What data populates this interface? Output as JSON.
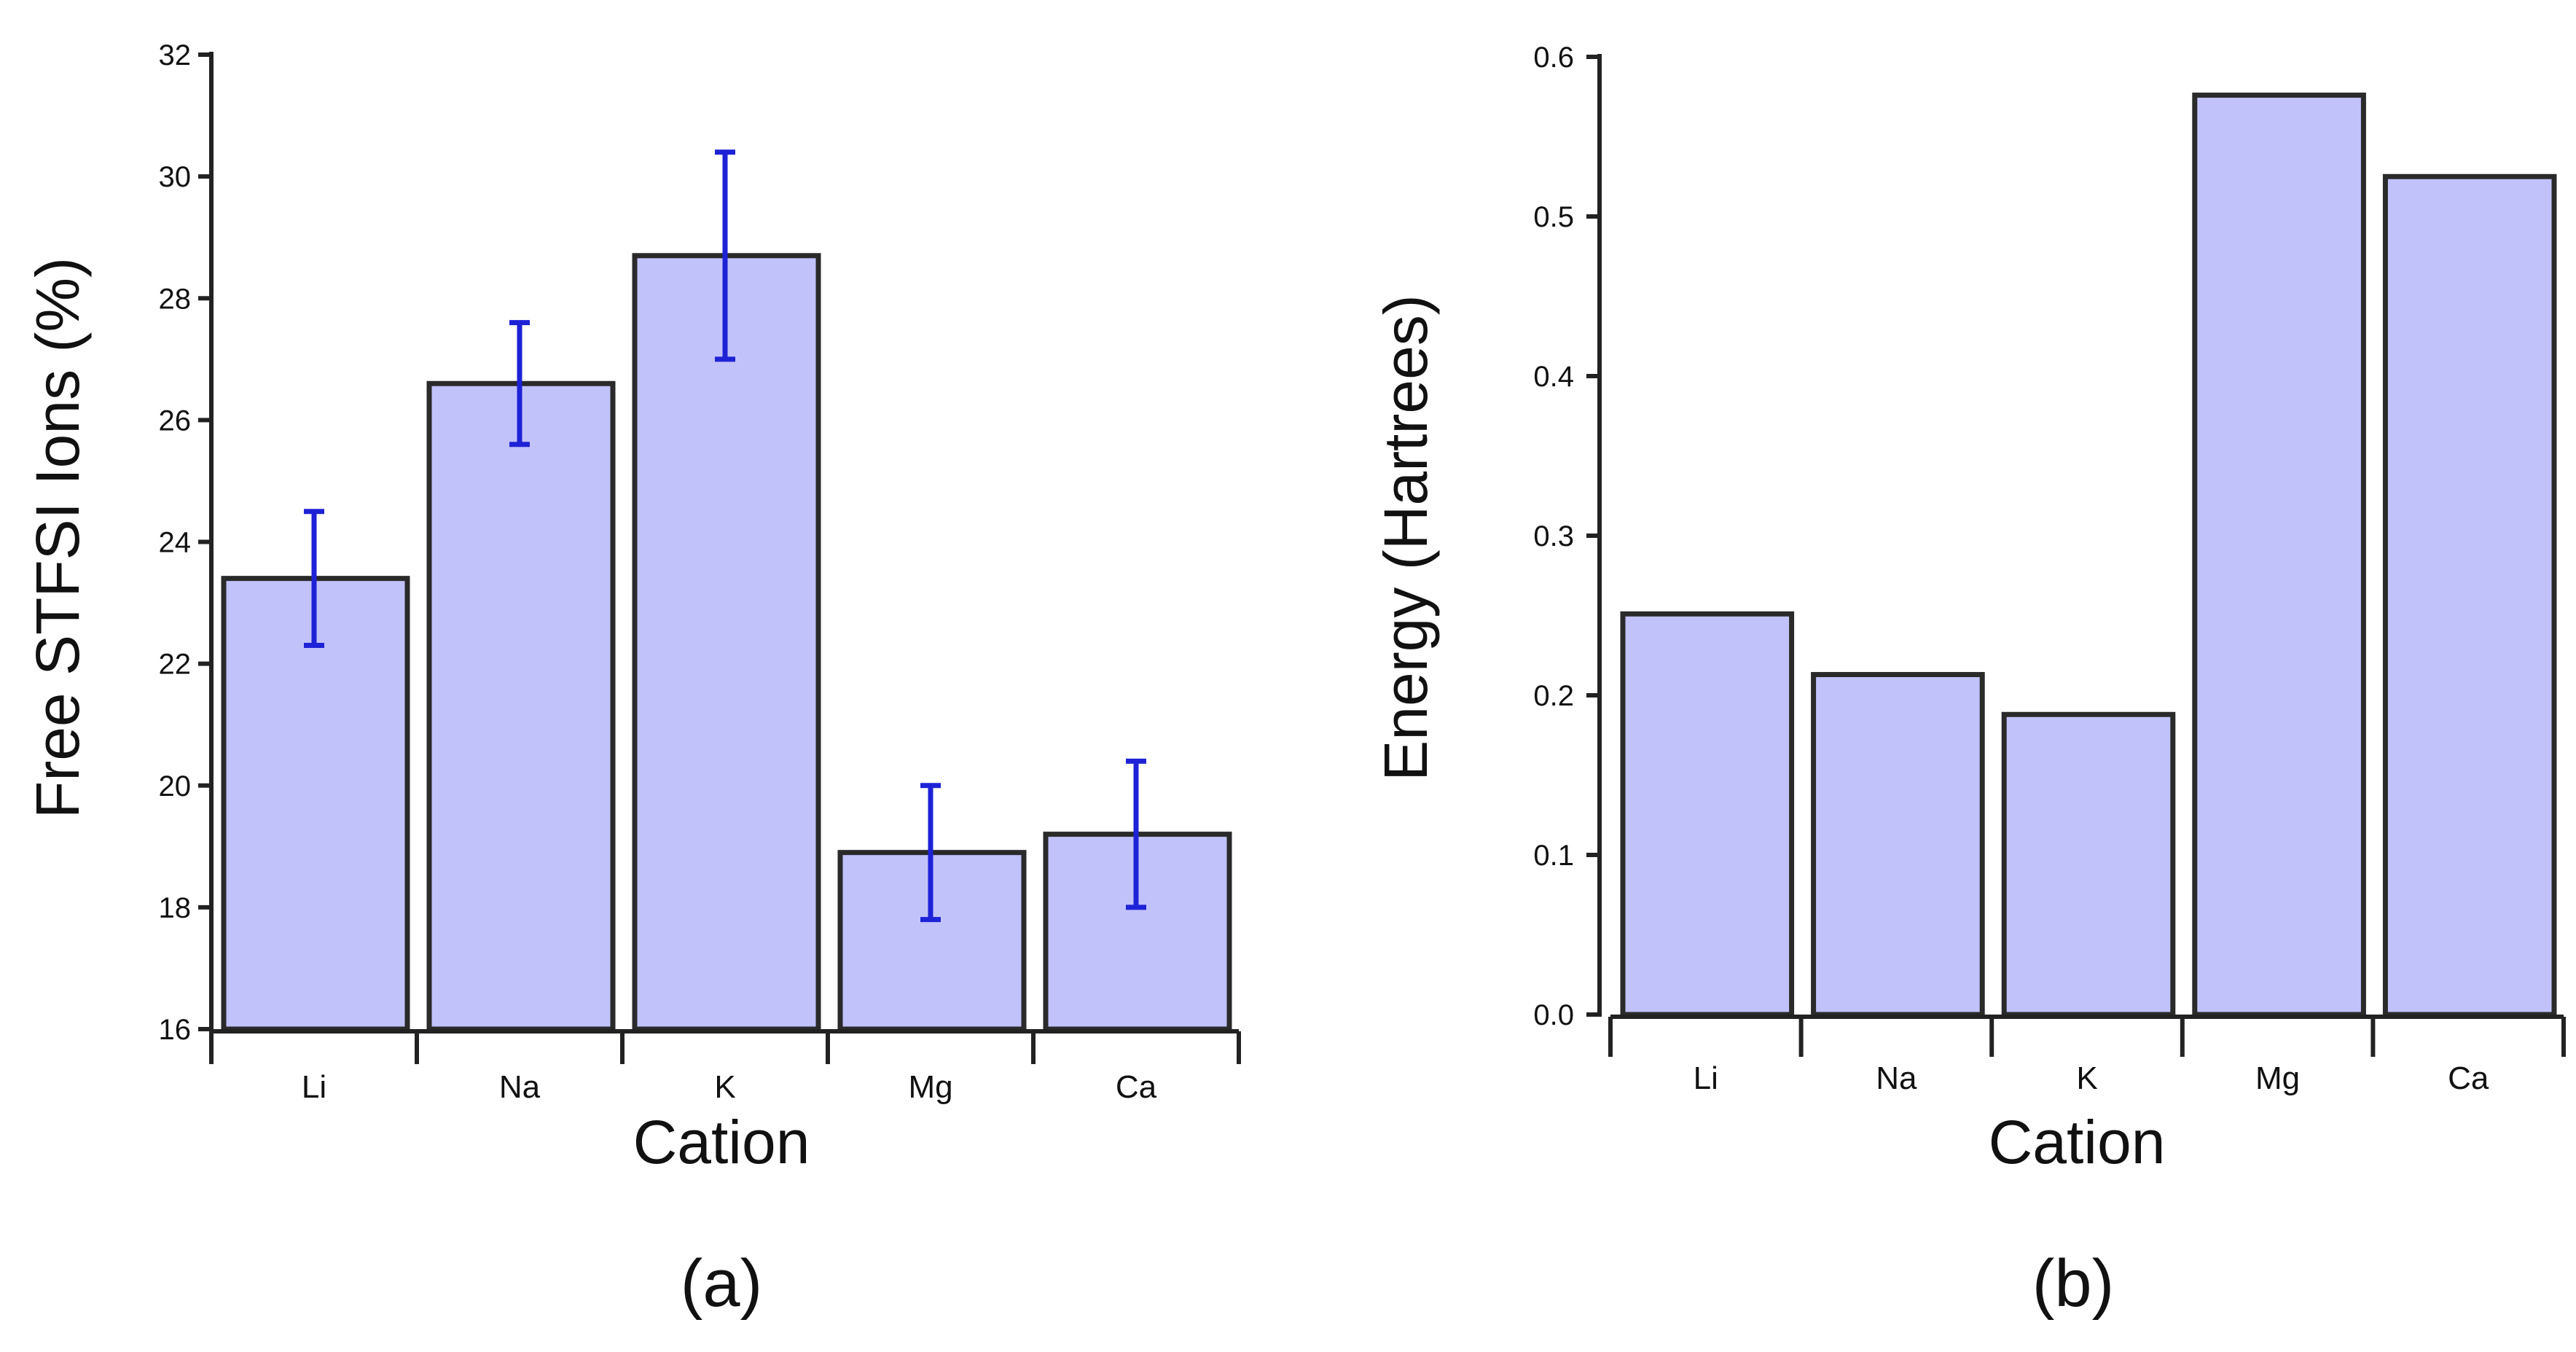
{
  "colors": {
    "bar_fill": "#c2c2fb",
    "bar_edge": "#2a2a2a",
    "error_bar": "#1e22d6",
    "axis": "#222222",
    "text": "#111111"
  },
  "chart_data": [
    {
      "type": "bar",
      "panel_label": "(a)",
      "title": "",
      "categories": [
        "Li",
        "Na",
        "K",
        "Mg",
        "Ca"
      ],
      "values": [
        23.4,
        26.6,
        28.7,
        18.9,
        19.2
      ],
      "errors": [
        [
          22.3,
          24.5
        ],
        [
          25.6,
          27.6
        ],
        [
          27.0,
          30.4
        ],
        [
          17.8,
          20.0
        ],
        [
          18.0,
          20.4
        ]
      ],
      "xlabel": "Cation",
      "ylabel": "Free STFSI Ions (%)",
      "ylim": [
        16,
        32
      ],
      "yticks": [
        "16",
        "18",
        "20",
        "22",
        "24",
        "26",
        "28",
        "30",
        "32"
      ],
      "grid": false,
      "legend": "none"
    },
    {
      "type": "bar",
      "panel_label": "(b)",
      "title": "",
      "categories": [
        "Li",
        "Na",
        "K",
        "Mg",
        "Ca"
      ],
      "values": [
        0.251,
        0.213,
        0.188,
        0.576,
        0.525
      ],
      "xlabel": "Cation",
      "ylabel": "Energy (Hartrees)",
      "ylim": [
        0,
        0.6
      ],
      "yticks": [
        "0.0",
        "0.1",
        "0.2",
        "0.3",
        "0.4",
        "0.5",
        "0.6"
      ],
      "grid": false,
      "legend": "none"
    }
  ]
}
